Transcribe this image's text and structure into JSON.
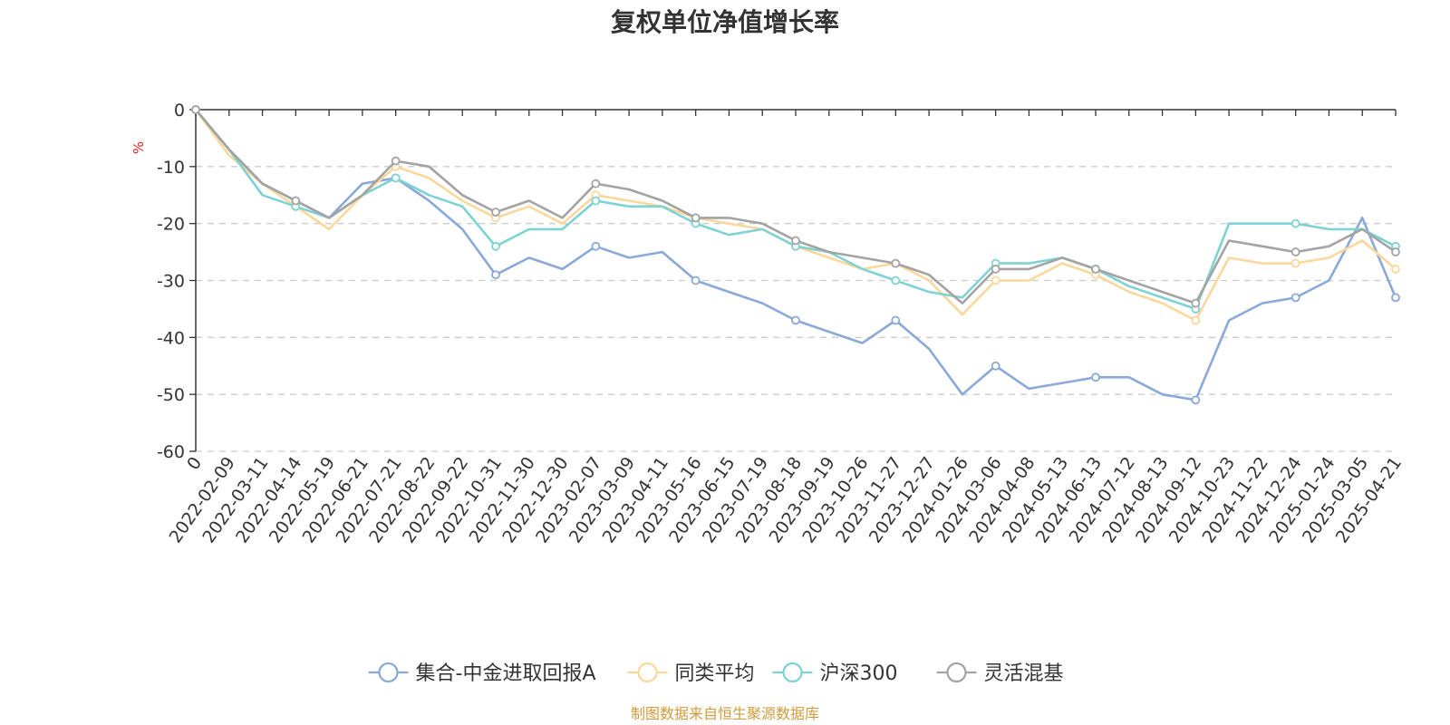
{
  "chart_data": {
    "type": "line",
    "title": "复权单位净值增长率",
    "ylabel": "%",
    "ylim": [
      -60,
      0
    ],
    "yticks": [
      0,
      -10,
      -20,
      -30,
      -40,
      -50,
      -60
    ],
    "x_categories": [
      "0",
      "2022-02-09",
      "2022-03-11",
      "2022-04-14",
      "2022-05-19",
      "2022-06-21",
      "2022-07-21",
      "2022-08-22",
      "2022-09-22",
      "2022-10-31",
      "2022-11-30",
      "2022-12-30",
      "2023-02-07",
      "2023-03-09",
      "2023-04-11",
      "2023-05-16",
      "2023-06-15",
      "2023-07-19",
      "2023-08-18",
      "2023-09-19",
      "2023-10-26",
      "2023-11-27",
      "2023-12-27",
      "2024-01-26",
      "2024-03-06",
      "2024-04-08",
      "2024-05-13",
      "2024-06-13",
      "2024-07-12",
      "2024-08-13",
      "2024-09-12",
      "2024-10-23",
      "2024-11-22",
      "2024-12-24",
      "2025-01-24",
      "2025-03-05",
      "2025-04-21"
    ],
    "grid": true,
    "legend_position": "bottom",
    "series": [
      {
        "name": "集合-中金进取回报A",
        "color": "#8AA9D9",
        "values": [
          0,
          -7,
          -13,
          -16,
          -19,
          -13,
          -12,
          -16,
          -21,
          -29,
          -26,
          -28,
          -24,
          -26,
          -25,
          -30,
          -32,
          -34,
          -37,
          -39,
          -41,
          -37,
          -42,
          -50,
          -45,
          -49,
          -48,
          -47,
          -47,
          -50,
          -51,
          -37,
          -34,
          -33,
          -30,
          -19,
          -33
        ]
      },
      {
        "name": "同类平均",
        "color": "#FCD79B",
        "values": [
          0,
          -8,
          -13,
          -17,
          -21,
          -15,
          -10,
          -12,
          -16,
          -19,
          -17,
          -20,
          -15,
          -16,
          -17,
          -19,
          -20,
          -21,
          -24,
          -26,
          -28,
          -27,
          -30,
          -36,
          -30,
          -30,
          -27,
          -29,
          -32,
          -34,
          -37,
          -26,
          -27,
          -27,
          -26,
          -23,
          -28
        ]
      },
      {
        "name": "沪深300",
        "color": "#7DD3D3",
        "values": [
          0,
          -7,
          -15,
          -17,
          -19,
          -15,
          -12,
          -15,
          -17,
          -24,
          -21,
          -21,
          -16,
          -17,
          -17,
          -20,
          -22,
          -21,
          -24,
          -25,
          -28,
          -30,
          -32,
          -33,
          -27,
          -27,
          -26,
          -28,
          -31,
          -33,
          -35,
          -20,
          -20,
          -20,
          -21,
          -21,
          -24
        ]
      },
      {
        "name": "灵活混基",
        "color": "#A3A3A3",
        "values": [
          0,
          -7,
          -13,
          -16,
          -19,
          -15,
          -9,
          -10,
          -15,
          -18,
          -16,
          -19,
          -13,
          -14,
          -16,
          -19,
          -19,
          -20,
          -23,
          -25,
          -26,
          -27,
          -29,
          -34,
          -28,
          -28,
          -26,
          -28,
          -30,
          -32,
          -34,
          -23,
          -24,
          -25,
          -24,
          -21,
          -25
        ]
      }
    ]
  },
  "source_text": "制图数据来自恒生聚源数据库",
  "source_color": "#D19A3D"
}
